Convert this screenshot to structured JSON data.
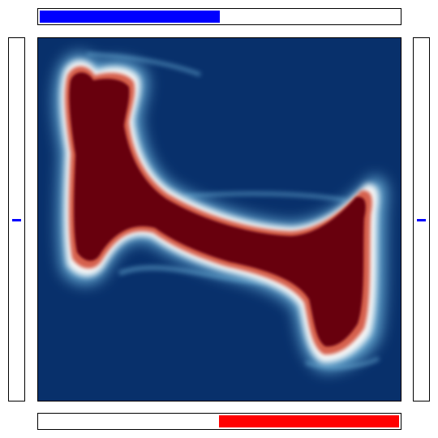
{
  "colors": {
    "top_bar_fill": "#0000ff",
    "bottom_bar_fill": "#ff0000",
    "left_marker": "#0000ff",
    "right_marker": "#0000ff",
    "field_background": "#08306b",
    "blob_core": "#67000d",
    "blob_mid": "#d6604d",
    "blob_edge": "#f7f7f7",
    "blob_halo": "#6baed6"
  },
  "indicators": {
    "top_bar_level": 0.5,
    "bottom_bar_level": 0.5,
    "left_marker_level": 0.5,
    "right_marker_level": 0.5
  }
}
